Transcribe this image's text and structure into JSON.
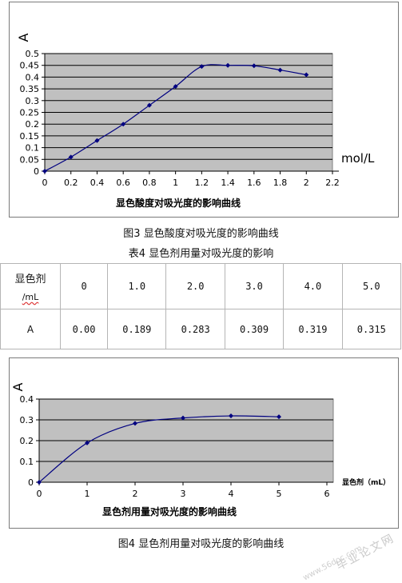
{
  "chart_data": [
    {
      "type": "line",
      "title": "显色酸度对吸光度的影响曲线",
      "xlabel": "mol/L",
      "ylabel": "A",
      "x": [
        0,
        0.2,
        0.4,
        0.6,
        0.8,
        1.0,
        1.2,
        1.4,
        1.6,
        1.8,
        2.0
      ],
      "series": [
        {
          "values": [
            0,
            0.06,
            0.13,
            0.2,
            0.28,
            0.36,
            0.445,
            0.45,
            0.448,
            0.43,
            0.41
          ]
        }
      ],
      "xlim": [
        0,
        2.2
      ],
      "ylim": [
        0,
        0.5
      ],
      "xticks": [
        "0",
        "0.2",
        "0.4",
        "0.6",
        "0.8",
        "1",
        "1.2",
        "1.4",
        "1.6",
        "1.8",
        "2",
        "2.2"
      ],
      "yticks": [
        "0",
        "0.05",
        "0.1",
        "0.15",
        "0.2",
        "0.25",
        "0.3",
        "0.35",
        "0.4",
        "0.45",
        "0.5"
      ],
      "grid": true,
      "plot_background": "#c0c0c0",
      "line_color": "#000080"
    },
    {
      "type": "line",
      "title": "显色剂用量对吸光度的影响曲线",
      "xlabel": "显色剂（mL）",
      "ylabel": "A",
      "x": [
        0,
        1,
        2,
        3,
        4,
        5
      ],
      "series": [
        {
          "values": [
            0,
            0.189,
            0.283,
            0.309,
            0.319,
            0.315
          ]
        }
      ],
      "xlim": [
        0,
        6
      ],
      "ylim": [
        0,
        0.4
      ],
      "xticks": [
        "0",
        "1",
        "2",
        "3",
        "4",
        "5",
        "6"
      ],
      "yticks": [
        "0",
        "0.1",
        "0.2",
        "0.3",
        "0.4"
      ],
      "grid": true,
      "plot_background": "#c0c0c0",
      "line_color": "#000080"
    }
  ],
  "captions": {
    "fig3": "图3 显色酸度对吸光度的影响曲线",
    "table4": "表4 显色剂用量对吸光度的影响",
    "fig4": "图4 显色剂用量对吸光度的影响曲线"
  },
  "table": {
    "head_label": "显色剂",
    "head_unit": "/mL",
    "columns": [
      "0",
      "1.0",
      "2.0",
      "3.0",
      "4.0",
      "5.0"
    ],
    "row_label": "A",
    "row_values": [
      "0.00",
      "0.189",
      "0.283",
      "0.309",
      "0.319",
      "0.315"
    ]
  },
  "watermark": {
    "main": "毕业论文网",
    "sub": "www.56doc.com"
  }
}
